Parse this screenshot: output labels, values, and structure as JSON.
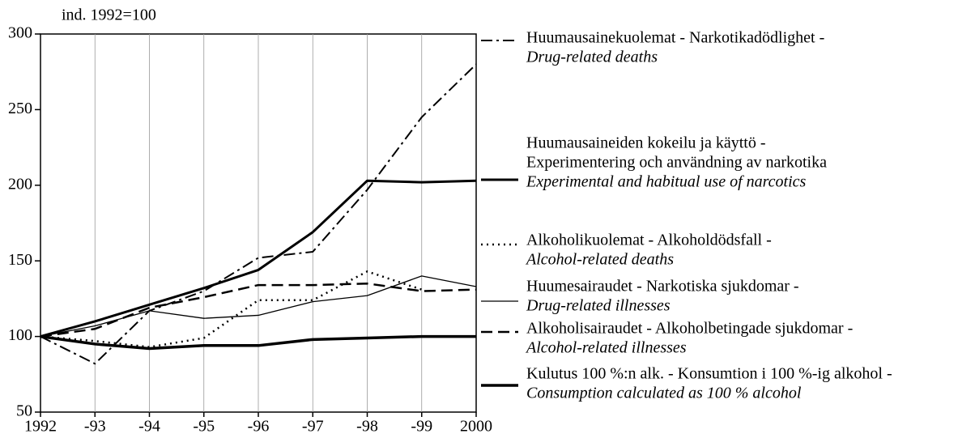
{
  "chart_data": {
    "type": "line",
    "y_label": "ind. 1992=100",
    "categories": [
      "1992",
      "-93",
      "-94",
      "-95",
      "-96",
      "-97",
      "-98",
      "-99",
      "2000"
    ],
    "ylim": [
      50,
      300
    ],
    "yticks": [
      50,
      100,
      150,
      200,
      250,
      300
    ],
    "grid": "x",
    "series": [
      {
        "name": [
          "Huumausainekuolemat - Narkotikadödlighet -"
        ],
        "english": "Drug-related deaths",
        "color": "#000",
        "style": "dashdot",
        "width": 2,
        "values": [
          100,
          82,
          117,
          130,
          152,
          156,
          197,
          245,
          280
        ]
      },
      {
        "name": [
          "Huumausaineiden kokeilu ja käyttö -",
          "Experimentering och användning av narkotika"
        ],
        "english": "Experimental and habitual use of narcotics",
        "color": "#000",
        "style": "solid",
        "width": 3,
        "values": [
          100,
          110,
          121,
          132,
          144,
          169,
          203,
          202,
          203
        ]
      },
      {
        "name": [
          "Alkoholikuolemat - Alkoholdödsfall -"
        ],
        "english": "Alcohol-related deaths",
        "color": "#000",
        "style": "dotted",
        "width": 2.5,
        "values": [
          100,
          97,
          93,
          99,
          124,
          124,
          143,
          131,
          null
        ]
      },
      {
        "name": [
          "Huumesairaudet - Narkotiska sjukdomar -"
        ],
        "english": "Drug-related illnesses",
        "color": "#000",
        "style": "solid",
        "width": 1.3,
        "values": [
          100,
          107,
          117,
          112,
          114,
          123,
          127,
          140,
          133
        ]
      },
      {
        "name": [
          "Alkoholisairaudet - Alkoholbetingade sjukdomar -"
        ],
        "english": "Alcohol-related illnesses",
        "color": "#000",
        "style": "dashed",
        "width": 2.5,
        "values": [
          100,
          105,
          119,
          126,
          134,
          134,
          135,
          130,
          131
        ]
      },
      {
        "name": [
          "Kulutus 100 %:n alk. - Konsumtion i 100 %-ig alkohol -"
        ],
        "english": "Consumption calculated as 100 % alcohol",
        "color": "#000",
        "style": "solid",
        "width": 3.5,
        "values": [
          100,
          95,
          92,
          94,
          94,
          98,
          99,
          100,
          100
        ]
      }
    ]
  }
}
